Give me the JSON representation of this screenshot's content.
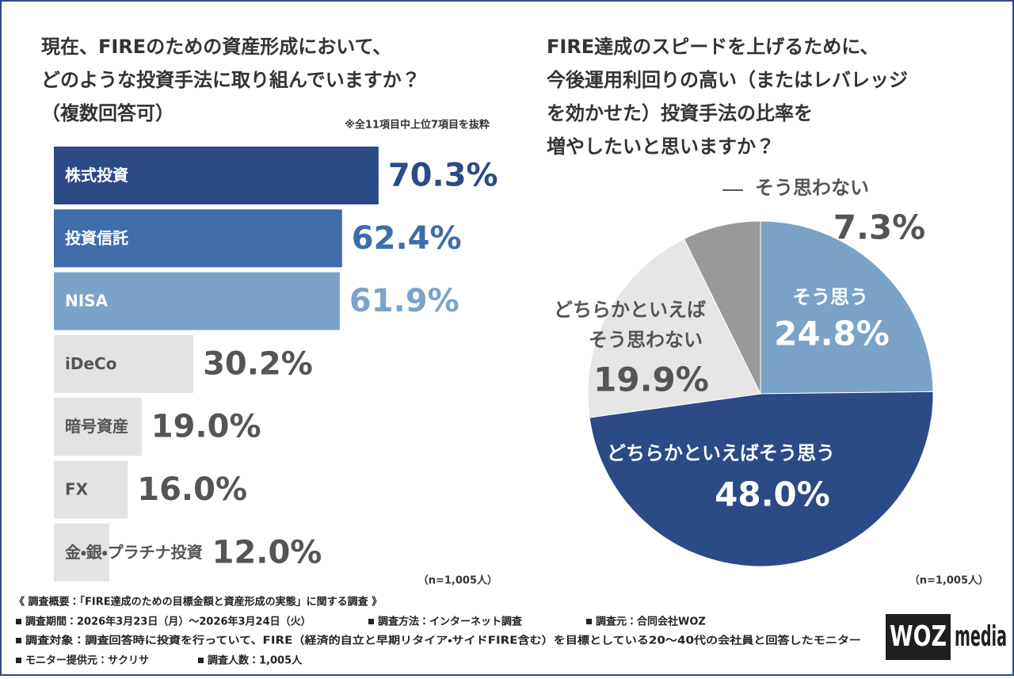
{
  "chart_data": [
    {
      "type": "bar",
      "orientation": "horizontal",
      "title": [
        "現在、FIREのための資産形成において、",
        "どのような投資手法に取り組んでいますか？",
        "（複数回答可）"
      ],
      "note": "※全11項目中上位7項目を抜粋",
      "categories": [
        "株式投資",
        "投資信託",
        "NISA",
        "iDeCo",
        "暗号資産",
        "FX",
        "金・銀・プラチナ投資"
      ],
      "values": [
        70.3,
        62.4,
        61.9,
        30.2,
        19.0,
        16.0,
        12.0
      ],
      "value_labels": [
        "70.3%",
        "62.4%",
        "61.9%",
        "30.2%",
        "19.0%",
        "16.0%",
        "12.0%"
      ],
      "colors": [
        "#2b4a86",
        "#3f6daa",
        "#7ba3c9",
        "#e3e3e3",
        "#e3e3e3",
        "#e3e3e3",
        "#e3e3e3"
      ],
      "text_colors": [
        "#ffffff",
        "#ffffff",
        "#ffffff",
        "#555555",
        "#555555",
        "#555555",
        "#555555"
      ],
      "value_label_colors": [
        "#2b4a86",
        "#3f6daa",
        "#7ba3c9",
        "#555555",
        "#555555",
        "#555555",
        "#555555"
      ],
      "xlim": [
        0,
        100
      ],
      "sample_note": "（n=1,005人）"
    },
    {
      "type": "pie",
      "title": [
        "FIRE達成のスピードを上げるために、",
        "今後運用利回りの高い（またはレバレッジ",
        "を効かせた）投資手法の比率を",
        "増やしたいと思いますか？"
      ],
      "categories": [
        "そう思う",
        "どちらかといえばそう思う",
        "どちらかといえばそう思わない",
        "そう思わない"
      ],
      "values": [
        24.8,
        48.0,
        19.9,
        7.3
      ],
      "value_labels": [
        "24.8%",
        "48.0%",
        "19.9%",
        "7.3%"
      ],
      "colors": [
        "#7ba3c9",
        "#2b4a86",
        "#e6e6e6",
        "#9a9a9a"
      ],
      "label_colors": [
        "#ffffff",
        "#ffffff",
        "#555555",
        "#555555"
      ],
      "sample_note": "（n=1,005人）"
    }
  ],
  "footer": {
    "heading": "《 調査概要：「FIRE達成のための目標金額と資産形成の実態」に関する調査 》",
    "items": [
      "調査期間：2026年3月23日（月）～2026年3月24日（火）",
      "調査方法：インターネット調査",
      "調査元：合同会社WOZ",
      "調査対象：調査回答時に投資を行っていて、FIRE（経済的自立と早期リタイア・サイドFIRE含む）を目標としている20～40代の会社員と回答したモニター",
      "モニター提供元：サクリサ",
      "調査人数：1,005人"
    ]
  },
  "logo": {
    "brand": "WOZ",
    "suffix": "media"
  }
}
